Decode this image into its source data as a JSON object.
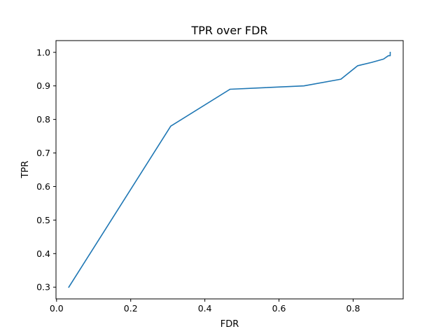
{
  "chart_data": {
    "type": "line",
    "title": "TPR over FDR",
    "xlabel": "FDR",
    "ylabel": "TPR",
    "xlim": [
      -0.0015,
      0.935
    ],
    "ylim": [
      0.265,
      1.035
    ],
    "x_ticks": [
      0.0,
      0.2,
      0.4,
      0.6,
      0.8
    ],
    "x_tick_labels": [
      "0.0",
      "0.2",
      "0.4",
      "0.6",
      "0.8"
    ],
    "y_ticks": [
      0.3,
      0.4,
      0.5,
      0.6,
      0.7,
      0.8,
      0.9,
      1.0
    ],
    "y_tick_labels": [
      "0.3",
      "0.4",
      "0.5",
      "0.6",
      "0.7",
      "0.8",
      "0.9",
      "1.0"
    ],
    "grid": false,
    "series": [
      {
        "color": "#1f77b4",
        "x": [
          0.033,
          0.308,
          0.468,
          0.667,
          0.767,
          0.812,
          0.85,
          0.882,
          0.895,
          0.9,
          0.9
        ],
        "y": [
          0.3,
          0.78,
          0.89,
          0.9,
          0.92,
          0.96,
          0.97,
          0.98,
          0.99,
          0.99,
          1.0
        ]
      }
    ]
  }
}
